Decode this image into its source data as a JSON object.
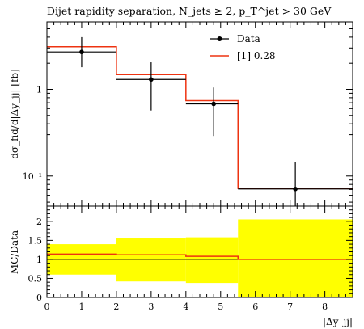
{
  "chart_data": [
    {
      "type": "line",
      "title": "Dijet rapidity separation, N_jets ≥ 2, p_T^jet > 30 GeV",
      "ylabel": "dσ_fid/d|Δy_jj| [fb]",
      "yscale": "log",
      "ylim": [
        0.045,
        6
      ],
      "xlim": [
        0,
        8.8
      ],
      "y_ticks": [
        {
          "value": 0.1,
          "label": "10⁻¹"
        },
        {
          "value": 1,
          "label": "1"
        }
      ],
      "legend_position": "top-right",
      "series": [
        {
          "name": "Data",
          "style": "points-with-errors",
          "color": "#000000",
          "points": [
            {
              "x": 1.0,
              "y": 2.7,
              "xlo": 0.0,
              "xhi": 2.0,
              "ylo": 1.8,
              "yhi": 4.0
            },
            {
              "x": 3.0,
              "y": 1.3,
              "xlo": 2.0,
              "xhi": 4.0,
              "ylo": 0.57,
              "yhi": 2.05
            },
            {
              "x": 4.8,
              "y": 0.68,
              "xlo": 4.0,
              "xhi": 5.5,
              "ylo": 0.29,
              "yhi": 1.05
            },
            {
              "x": 7.15,
              "y": 0.071,
              "xlo": 5.5,
              "xhi": 8.8,
              "ylo": 0.045,
              "yhi": 0.145
            }
          ]
        },
        {
          "name": "[1] 0.28",
          "style": "histogram",
          "color": "#ee3311",
          "bins": [
            {
              "xlo": 0.0,
              "xhi": 2.0,
              "y": 3.1
            },
            {
              "xlo": 2.0,
              "xhi": 4.0,
              "y": 1.48
            },
            {
              "xlo": 4.0,
              "xhi": 5.5,
              "y": 0.74
            },
            {
              "xlo": 5.5,
              "xhi": 8.8,
              "y": 0.072
            }
          ]
        }
      ]
    },
    {
      "type": "line",
      "ylabel": "MC/Data",
      "xlabel": "|Δy_jj|",
      "xlim": [
        0,
        8.8
      ],
      "ylim": [
        0,
        2.4
      ],
      "x_ticks": [
        "0",
        "1",
        "2",
        "3",
        "4",
        "5",
        "6",
        "7",
        "8"
      ],
      "y_ticks": [
        "0",
        "0.5",
        "1",
        "1.5",
        "2"
      ],
      "band_color": "#ffff00",
      "band": [
        {
          "xlo": 0.0,
          "xhi": 2.0,
          "lo": 0.6,
          "hi": 1.4
        },
        {
          "xlo": 2.0,
          "xhi": 4.0,
          "lo": 0.42,
          "hi": 1.55
        },
        {
          "xlo": 4.0,
          "xhi": 5.5,
          "lo": 0.38,
          "hi": 1.58
        },
        {
          "xlo": 5.5,
          "xhi": 8.8,
          "lo": 0.0,
          "hi": 2.05
        }
      ],
      "ratio_series": {
        "name": "[1] 0.28",
        "color": "#ee3311",
        "bins": [
          {
            "xlo": 0.0,
            "xhi": 2.0,
            "y": 1.14
          },
          {
            "xlo": 2.0,
            "xhi": 4.0,
            "y": 1.12
          },
          {
            "xlo": 4.0,
            "xhi": 5.5,
            "y": 1.08
          },
          {
            "xlo": 5.5,
            "xhi": 8.8,
            "y": 1.0
          }
        ]
      }
    }
  ]
}
